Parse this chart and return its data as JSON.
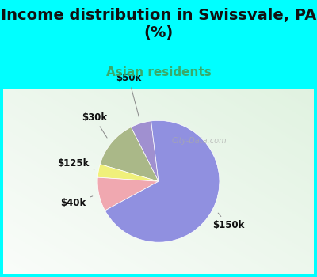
{
  "title": "Income distribution in Swissvale, PA\n(%)",
  "subtitle": "Asian residents",
  "slices": [
    {
      "label": "$50k",
      "value": 5.5,
      "color": "#a090d0"
    },
    {
      "label": "$30k",
      "value": 13.0,
      "color": "#aab888"
    },
    {
      "label": "$125k",
      "value": 3.5,
      "color": "#f0f07a"
    },
    {
      "label": "$40k",
      "value": 9.0,
      "color": "#f0a8b0"
    },
    {
      "label": "$150k",
      "value": 69.0,
      "color": "#9090e0"
    }
  ],
  "startangle": 97,
  "bg_top_color": "#00ffff",
  "chart_bg_left": "#c8e8d0",
  "chart_bg_right": "#e0f0e8",
  "title_fontsize": 14,
  "subtitle_fontsize": 11,
  "subtitle_color": "#3aaa6a",
  "label_fontsize": 8.5,
  "watermark": "City-Data.com"
}
